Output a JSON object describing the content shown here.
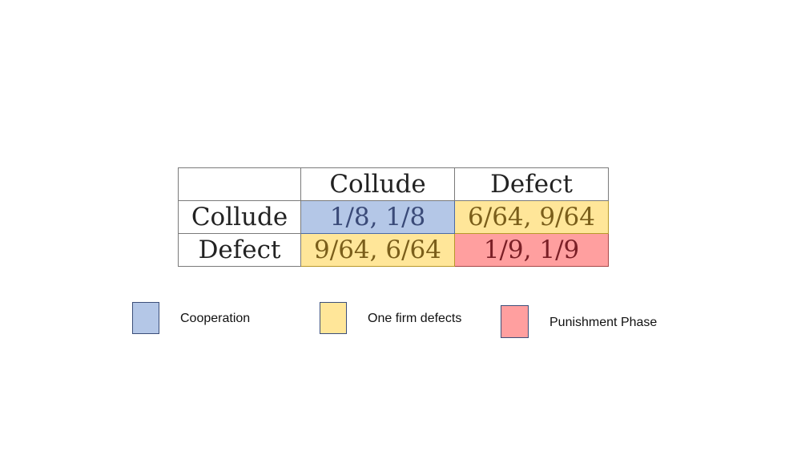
{
  "colors": {
    "cooperation": "#b4c7e7",
    "one_firm_defects": "#ffe699",
    "punishment_phase": "#ff9f9f"
  },
  "table": {
    "column_headers": [
      "Collude",
      "Defect"
    ],
    "rows": [
      {
        "label": "Collude",
        "cells": [
          "1/8, 1/8",
          "6/64, 9/64"
        ],
        "categories": [
          "cooperation",
          "one_firm_defects"
        ]
      },
      {
        "label": "Defect",
        "cells": [
          "9/64, 6/64",
          "1/9, 1/9"
        ],
        "categories": [
          "one_firm_defects",
          "punishment_phase"
        ]
      }
    ]
  },
  "legend": [
    {
      "key": "cooperation",
      "label": "Cooperation"
    },
    {
      "key": "one_firm_defects",
      "label": "One firm defects"
    },
    {
      "key": "punishment_phase",
      "label": "Punishment Phase"
    }
  ]
}
